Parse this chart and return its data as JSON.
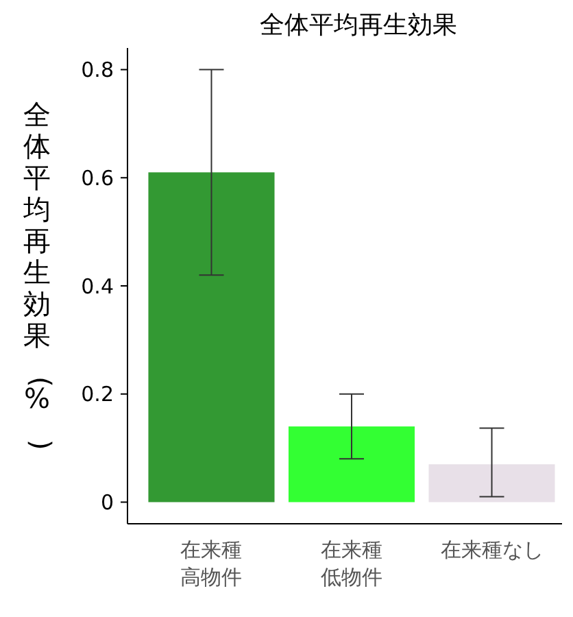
{
  "chart_data": {
    "type": "bar",
    "title": "全体平均再生効果",
    "ylabel": "全体平均再生効果(%)",
    "categories": [
      "在来種高物件",
      "在来種低物件",
      "在来種なし"
    ],
    "values": [
      0.61,
      0.14,
      0.07
    ],
    "colors": [
      "#339933",
      "#33ff33",
      "#e8e0e8"
    ],
    "errors": [
      [
        0.42,
        0.8
      ],
      [
        0.08,
        0.2
      ],
      [
        0.01,
        0.137
      ]
    ],
    "ylim": [
      -0.04,
      0.84
    ],
    "yticks": [
      0,
      0.2,
      0.4,
      0.6,
      0.8
    ],
    "grid": false
  }
}
